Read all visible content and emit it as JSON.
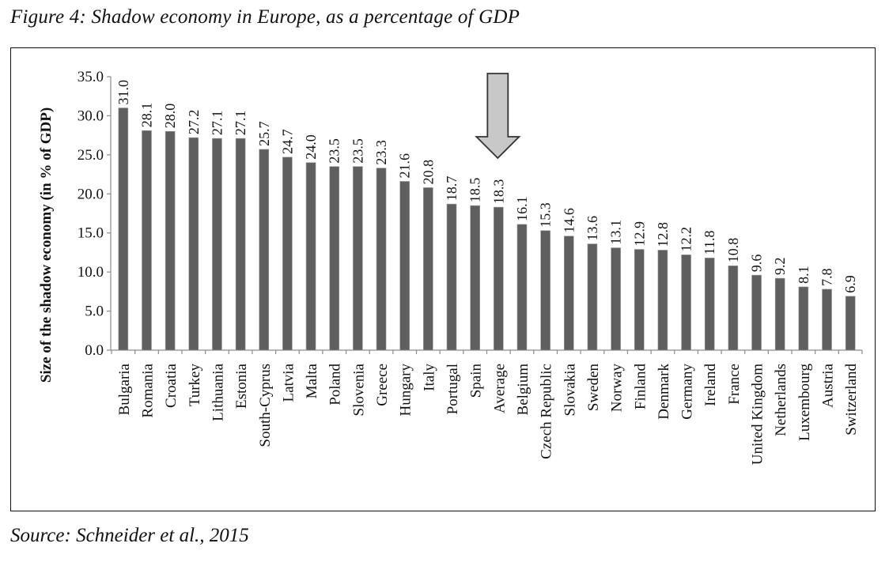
{
  "figure": {
    "title": "Figure 4: Shadow economy in Europe, as a percentage of GDP",
    "source": "Source: Schneider et al., 2015"
  },
  "chart_data": {
    "type": "bar",
    "title": "Figure 4: Shadow economy in Europe, as a percentage of GDP",
    "xlabel": "",
    "ylabel": "Size of the shadow economy (in % of GDP)",
    "ylim": [
      0,
      35
    ],
    "yticks": [
      "0.0",
      "5.0",
      "10.0",
      "15.0",
      "20.0",
      "25.0",
      "30.0",
      "35.0"
    ],
    "grid": false,
    "legend": "none",
    "bar_color": "#5f5f5f",
    "categories": [
      "Bulgaria",
      "Romania",
      "Croatia",
      "Turkey",
      "Lithuania",
      "Estonia",
      "South-Cyprus",
      "Latvia",
      "Malta",
      "Poland",
      "Slovenia",
      "Greece",
      "Hungary",
      "Italy",
      "Portugal",
      "Spain",
      "Average",
      "Belgium",
      "Czech Republic",
      "Slovakia",
      "Sweden",
      "Norway",
      "Finland",
      "Denmark",
      "Germany",
      "Ireland",
      "France",
      "United Kingdom",
      "Netherlands",
      "Luxembourg",
      "Austria",
      "Switzerland"
    ],
    "values": [
      31.0,
      28.1,
      28.0,
      27.2,
      27.1,
      27.1,
      25.7,
      24.7,
      24.0,
      23.5,
      23.5,
      23.3,
      21.6,
      20.8,
      18.7,
      18.5,
      18.3,
      16.1,
      15.3,
      14.6,
      13.6,
      13.1,
      12.9,
      12.8,
      12.2,
      11.8,
      10.8,
      9.6,
      9.2,
      8.1,
      7.8,
      6.9
    ],
    "data_labels": [
      "31.0",
      "28.1",
      "28.0",
      "27.2",
      "27.1",
      "27.1",
      "25.7",
      "24.7",
      "24.0",
      "23.5",
      "23.5",
      "23.3",
      "21.6",
      "20.8",
      "18.7",
      "18.5",
      "18.3",
      "16.1",
      "15.3",
      "14.6",
      "13.6",
      "13.1",
      "12.9",
      "12.8",
      "12.2",
      "11.8",
      "10.8",
      "9.6",
      "9.2",
      "8.1",
      "7.8",
      "6.9"
    ],
    "annotations": [
      {
        "type": "arrow",
        "direction": "down",
        "points_to": "Average",
        "fill": "#c8c8c8"
      }
    ]
  }
}
